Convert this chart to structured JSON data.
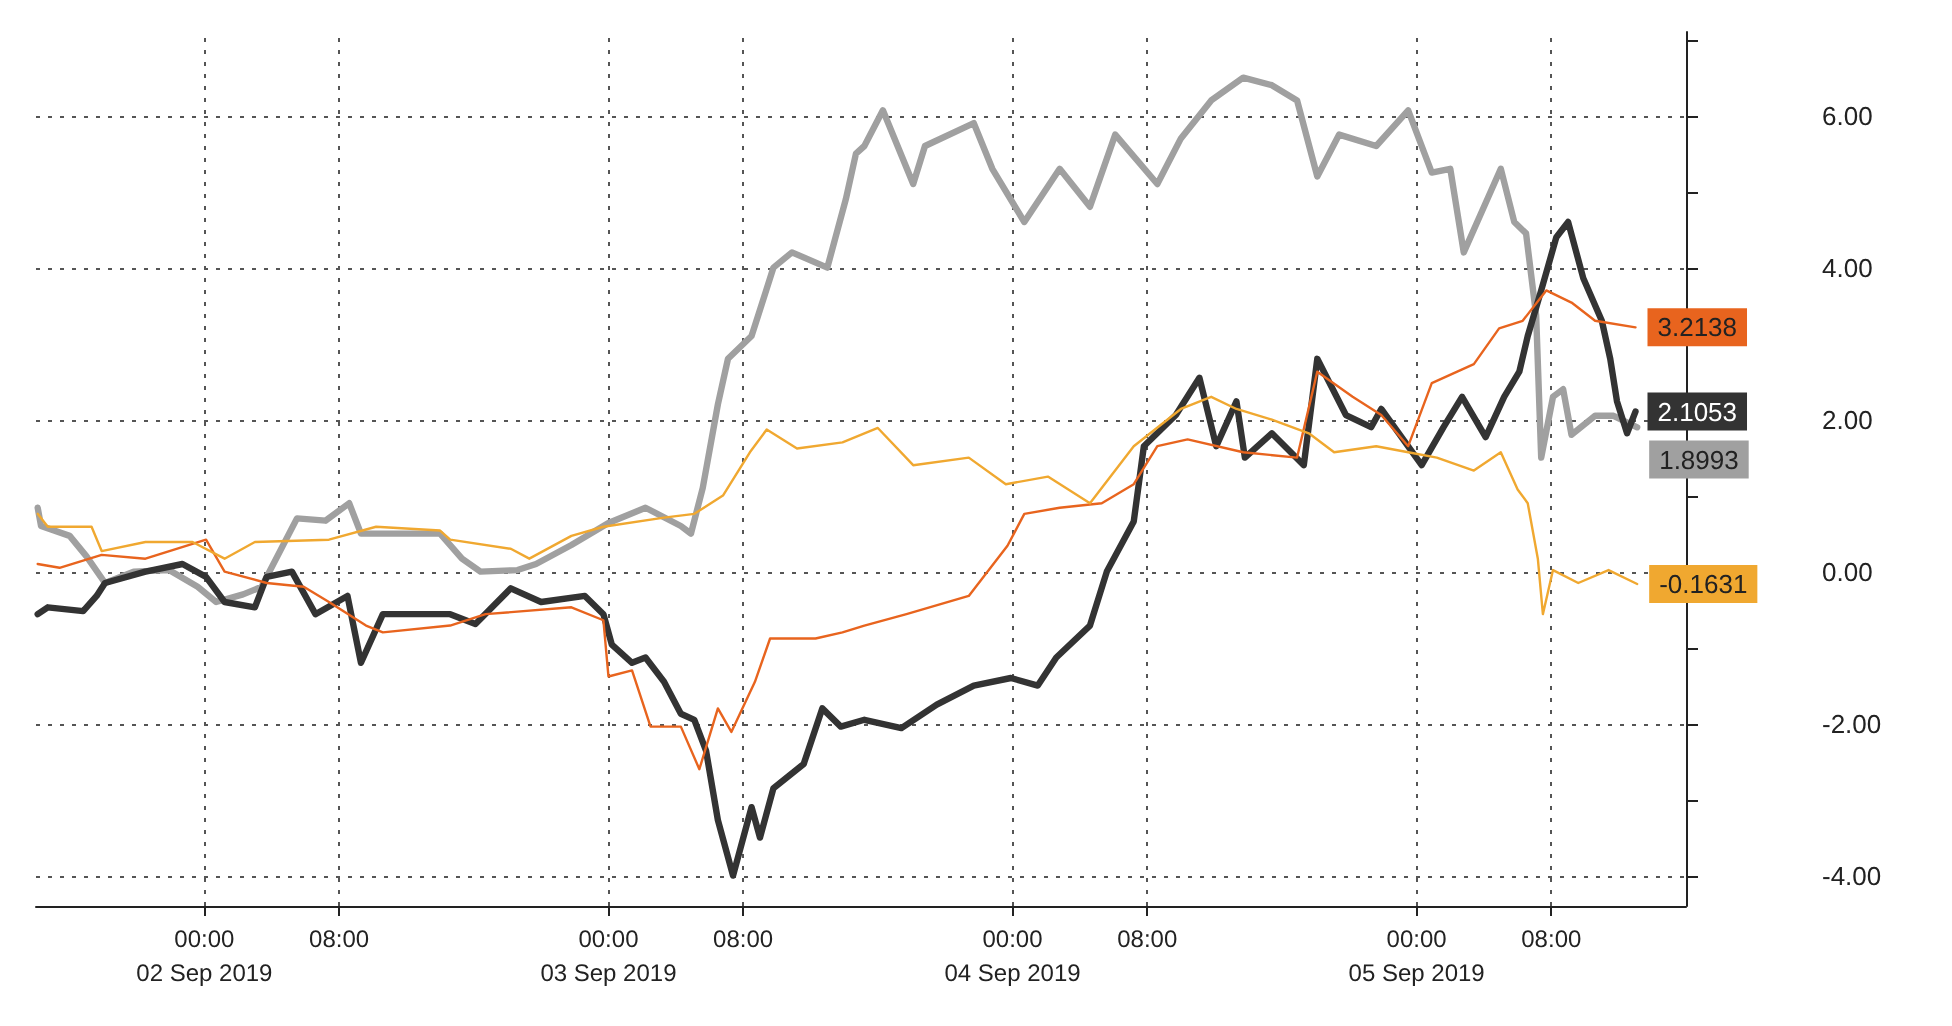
{
  "chart_data": {
    "type": "line",
    "xlim": [
      "2019-09-01T14:00",
      "2019-09-05T16:00"
    ],
    "ylim": [
      -4.4,
      7.1
    ],
    "xticks": [
      {
        "value": "2019-09-02T00:00",
        "label": "00:00\n02 Sep 2019"
      },
      {
        "value": "2019-09-02T08:00",
        "label": "08:00"
      },
      {
        "value": "2019-09-03T00:00",
        "label": "00:00\n03 Sep 2019"
      },
      {
        "value": "2019-09-03T08:00",
        "label": "08:00"
      },
      {
        "value": "2019-09-04T00:00",
        "label": "00:00\n04 Sep 2019"
      },
      {
        "value": "2019-09-04T08:00",
        "label": "08:00"
      },
      {
        "value": "2019-09-05T00:00",
        "label": "00:00\n05 Sep 2019"
      },
      {
        "value": "2019-09-05T08:00",
        "label": "08:00"
      }
    ],
    "yticks": [
      {
        "value": -4,
        "label": "-4.00"
      },
      {
        "value": -3,
        "label": null
      },
      {
        "value": -2,
        "label": "-2.00"
      },
      {
        "value": -1,
        "label": null
      },
      {
        "value": 0,
        "label": "0.00"
      },
      {
        "value": 1,
        "label": null
      },
      {
        "value": 2,
        "label": "2.00"
      },
      {
        "value": 3,
        "label": null
      },
      {
        "value": 4,
        "label": "4.00"
      },
      {
        "value": 5,
        "label": null
      },
      {
        "value": 6,
        "label": "6.00"
      },
      {
        "value": 7,
        "label": null
      }
    ],
    "grid": true,
    "marker": "none",
    "line_style": "solid",
    "series": [
      {
        "color": "#a0a0a0",
        "x": [
          "2019-09-01T14:06",
          "2019-09-01T14:18",
          "2019-09-01T16:00",
          "2019-09-01T17:00",
          "2019-09-01T18:06",
          "2019-09-01T19:48",
          "2019-09-01T21:54",
          "2019-09-01T23:36",
          "2019-09-02T00:42",
          "2019-09-02T02:18",
          "2019-09-02T03:24",
          "2019-09-02T05:30",
          "2019-09-02T07:12",
          "2019-09-02T08:36",
          "2019-09-02T09:18",
          "2019-09-02T14:00",
          "2019-09-02T15:18",
          "2019-09-02T16:24",
          "2019-09-02T18:36",
          "2019-09-02T19:42",
          "2019-09-02T21:48",
          "2019-09-03T00:00",
          "2019-09-03T02:12",
          "2019-09-03T04:18",
          "2019-09-03T04:54",
          "2019-09-03T05:36",
          "2019-09-03T06:30",
          "2019-09-03T07:06",
          "2019-09-03T08:30",
          "2019-09-03T09:48",
          "2019-09-03T10:54",
          "2019-09-03T13:00",
          "2019-09-03T14:06",
          "2019-09-03T14:42",
          "2019-09-03T15:12",
          "2019-09-03T16:18",
          "2019-09-03T18:06",
          "2019-09-03T18:48",
          "2019-09-03T21:42",
          "2019-09-03T22:48",
          "2019-09-04T00:42",
          "2019-09-04T02:48",
          "2019-09-04T04:36",
          "2019-09-04T06:06",
          "2019-09-04T08:36",
          "2019-09-04T10:00",
          "2019-09-04T11:48",
          "2019-09-04T13:42",
          "2019-09-04T15:24",
          "2019-09-04T16:54",
          "2019-09-04T18:06",
          "2019-09-04T19:24",
          "2019-09-04T21:36",
          "2019-09-04T23:30",
          "2019-09-05T00:54",
          "2019-09-05T02:00",
          "2019-09-05T02:48",
          "2019-09-05T04:06",
          "2019-09-05T05:00",
          "2019-09-05T05:48",
          "2019-09-05T06:30",
          "2019-09-05T07:06",
          "2019-09-05T07:24",
          "2019-09-05T08:06",
          "2019-09-05T08:42",
          "2019-09-05T09:12",
          "2019-09-05T10:36",
          "2019-09-05T11:42",
          "2019-09-05T13:06"
        ],
        "values": [
          0.84,
          0.6,
          0.47,
          0.2,
          -0.15,
          0,
          0.02,
          -0.2,
          -0.4,
          -0.3,
          -0.2,
          0.7,
          0.67,
          0.9,
          0.5,
          0.5,
          0.17,
          0,
          0.02,
          0.1,
          0.35,
          0.64,
          0.84,
          0.6,
          0.5,
          1.1,
          2.2,
          2.8,
          3.1,
          4.0,
          4.2,
          4.0,
          4.9,
          5.5,
          5.6,
          6.07,
          5.1,
          5.6,
          5.9,
          5.3,
          4.6,
          5.3,
          4.8,
          5.75,
          5.1,
          5.7,
          6.2,
          6.5,
          6.4,
          6.2,
          5.2,
          5.75,
          5.6,
          6.07,
          5.25,
          5.3,
          4.2,
          4.85,
          5.3,
          4.6,
          4.45,
          3.37,
          1.5,
          2.3,
          2.4,
          1.8,
          2.05,
          2.05,
          1.8993
        ],
        "value_labels": [
          null,
          null,
          null,
          null,
          null,
          null,
          null,
          null,
          null,
          null,
          null,
          null,
          null,
          null,
          null,
          null,
          null,
          null,
          null,
          null,
          null,
          null,
          null,
          null,
          null,
          null,
          null,
          null,
          null,
          null,
          null,
          null,
          null,
          null,
          null,
          null,
          null,
          null,
          null,
          null,
          null,
          null,
          null,
          null,
          null,
          null,
          null,
          null,
          null,
          null,
          null,
          null,
          null,
          null,
          null,
          null,
          null,
          null,
          null,
          null,
          null,
          null,
          null,
          null,
          null,
          null,
          null,
          null,
          "1.8993"
        ]
      },
      {
        "color": "#333333",
        "x": [
          "2019-09-01T14:06",
          "2019-09-01T14:42",
          "2019-09-01T16:48",
          "2019-09-01T17:36",
          "2019-09-01T18:06",
          "2019-09-01T20:30",
          "2019-09-01T22:42",
          "2019-09-02T00:06",
          "2019-09-02T01:12",
          "2019-09-02T03:00",
          "2019-09-02T03:42",
          "2019-09-02T05:12",
          "2019-09-02T06:36",
          "2019-09-02T08:30",
          "2019-09-02T09:18",
          "2019-09-02T10:36",
          "2019-09-02T14:36",
          "2019-09-02T16:06",
          "2019-09-02T18:12",
          "2019-09-02T20:00",
          "2019-09-02T22:36",
          "2019-09-02T23:42",
          "2019-09-03T00:12",
          "2019-09-03T01:24",
          "2019-09-03T02:12",
          "2019-09-03T03:18",
          "2019-09-03T04:18",
          "2019-09-03T05:06",
          "2019-09-03T05:48",
          "2019-09-03T06:30",
          "2019-09-03T07:24",
          "2019-09-03T08:30",
          "2019-09-03T09:00",
          "2019-09-03T09:48",
          "2019-09-03T11:36",
          "2019-09-03T12:42",
          "2019-09-03T13:48",
          "2019-09-03T15:12",
          "2019-09-03T17:24",
          "2019-09-03T19:30",
          "2019-09-03T21:42",
          "2019-09-03T23:54",
          "2019-09-04T01:30",
          "2019-09-04T02:36",
          "2019-09-04T04:36",
          "2019-09-04T05:36",
          "2019-09-04T07:12",
          "2019-09-04T07:48",
          "2019-09-04T09:42",
          "2019-09-04T11:06",
          "2019-09-04T12:06",
          "2019-09-04T13:18",
          "2019-09-04T13:48",
          "2019-09-04T15:24",
          "2019-09-04T17:18",
          "2019-09-04T18:06",
          "2019-09-04T19:48",
          "2019-09-04T21:18",
          "2019-09-04T21:54",
          "2019-09-05T00:18",
          "2019-09-05T01:36",
          "2019-09-05T02:42",
          "2019-09-05T04:06",
          "2019-09-05T05:12",
          "2019-09-05T06:06",
          "2019-09-05T06:36",
          "2019-09-05T07:24",
          "2019-09-05T08:18",
          "2019-09-05T09:00",
          "2019-09-05T09:54",
          "2019-09-05T11:00",
          "2019-09-05T11:30",
          "2019-09-05T11:54",
          "2019-09-05T12:30",
          "2019-09-05T13:00"
        ],
        "values": [
          -0.56,
          -0.47,
          -0.52,
          -0.32,
          -0.15,
          0,
          0.1,
          -0.07,
          -0.4,
          -0.47,
          -0.07,
          0,
          -0.56,
          -0.32,
          -1.2,
          -0.56,
          -0.56,
          -0.69,
          -0.22,
          -0.4,
          -0.32,
          -0.56,
          -0.96,
          -1.2,
          -1.13,
          -1.45,
          -1.87,
          -1.95,
          -2.36,
          -3.27,
          -4.0,
          -3.1,
          -3.5,
          -2.85,
          -2.53,
          -1.8,
          -2.04,
          -1.95,
          -2.06,
          -1.75,
          -1.5,
          -1.4,
          -1.5,
          -1.13,
          -0.71,
          0,
          0.66,
          1.65,
          2.06,
          2.55,
          1.65,
          2.24,
          1.5,
          1.82,
          1.4,
          2.8,
          2.06,
          1.9,
          2.14,
          1.4,
          1.9,
          2.3,
          1.77,
          2.3,
          2.63,
          3.1,
          3.7,
          4.4,
          4.6,
          3.86,
          3.3,
          2.8,
          2.24,
          1.82,
          2.1053
        ],
        "value_labels": [
          null,
          null,
          null,
          null,
          null,
          null,
          null,
          null,
          null,
          null,
          null,
          null,
          null,
          null,
          null,
          null,
          null,
          null,
          null,
          null,
          null,
          null,
          null,
          null,
          null,
          null,
          null,
          null,
          null,
          null,
          null,
          null,
          null,
          null,
          null,
          null,
          null,
          null,
          null,
          null,
          null,
          null,
          null,
          null,
          null,
          null,
          null,
          null,
          null,
          null,
          null,
          null,
          null,
          null,
          null,
          null,
          null,
          null,
          null,
          null,
          null,
          null,
          null,
          null,
          null,
          null,
          null,
          null,
          null,
          null,
          null,
          null,
          null,
          null,
          "2.1053"
        ]
      },
      {
        "color": "#e8641e",
        "x": [
          "2019-09-01T14:06",
          "2019-09-01T15:24",
          "2019-09-01T17:54",
          "2019-09-01T20:30",
          "2019-09-02T00:06",
          "2019-09-02T01:12",
          "2019-09-02T03:42",
          "2019-09-02T05:54",
          "2019-09-02T07:24",
          "2019-09-02T09:36",
          "2019-09-02T10:36",
          "2019-09-02T14:36",
          "2019-09-02T16:42",
          "2019-09-02T21:48",
          "2019-09-02T23:42",
          "2019-09-03T00:00",
          "2019-09-03T01:24",
          "2019-09-03T02:30",
          "2019-09-03T04:18",
          "2019-09-03T05:24",
          "2019-09-03T06:30",
          "2019-09-03T07:18",
          "2019-09-03T08:42",
          "2019-09-03T09:36",
          "2019-09-03T12:18",
          "2019-09-03T13:54",
          "2019-09-03T15:12",
          "2019-09-03T17:42",
          "2019-09-03T21:24",
          "2019-09-03T23:42",
          "2019-09-04T00:42",
          "2019-09-04T02:48",
          "2019-09-04T05:18",
          "2019-09-04T07:12",
          "2019-09-04T08:36",
          "2019-09-04T10:24",
          "2019-09-04T13:42",
          "2019-09-04T16:54",
          "2019-09-04T18:06",
          "2019-09-04T20:12",
          "2019-09-04T21:54",
          "2019-09-04T23:30",
          "2019-09-05T00:54",
          "2019-09-05T03:24",
          "2019-09-05T04:54",
          "2019-09-05T06:18",
          "2019-09-05T07:42",
          "2019-09-05T09:12",
          "2019-09-05T10:36",
          "2019-09-05T13:00"
        ],
        "values": [
          0.1,
          0.05,
          0.22,
          0.17,
          0.42,
          0,
          -0.15,
          -0.2,
          -0.4,
          -0.71,
          -0.8,
          -0.71,
          -0.56,
          -0.47,
          -0.64,
          -1.38,
          -1.3,
          -2.04,
          -2.04,
          -2.6,
          -1.8,
          -2.11,
          -1.45,
          -0.88,
          -0.88,
          -0.8,
          -0.71,
          -0.56,
          -0.32,
          0.34,
          0.76,
          0.84,
          0.9,
          1.15,
          1.65,
          1.74,
          1.57,
          1.5,
          2.63,
          2.3,
          2.06,
          1.65,
          2.48,
          2.73,
          3.2,
          3.3,
          3.7,
          3.54,
          3.3,
          3.2138
        ],
        "value_labels": [
          null,
          null,
          null,
          null,
          null,
          null,
          null,
          null,
          null,
          null,
          null,
          null,
          null,
          null,
          null,
          null,
          null,
          null,
          null,
          null,
          null,
          null,
          null,
          null,
          null,
          null,
          null,
          null,
          null,
          null,
          null,
          null,
          null,
          null,
          null,
          null,
          null,
          null,
          null,
          null,
          null,
          null,
          null,
          null,
          null,
          null,
          null,
          null,
          null,
          "3.2138"
        ]
      },
      {
        "color": "#f0a830",
        "x": [
          "2019-09-01T14:06",
          "2019-09-01T14:42",
          "2019-09-01T17:18",
          "2019-09-01T17:54",
          "2019-09-01T20:30",
          "2019-09-01T23:18",
          "2019-09-02T01:12",
          "2019-09-02T03:00",
          "2019-09-02T07:24",
          "2019-09-02T10:12",
          "2019-09-02T14:00",
          "2019-09-02T14:36",
          "2019-09-02T18:12",
          "2019-09-02T19:18",
          "2019-09-02T21:48",
          "2019-09-02T23:42",
          "2019-09-03T03:18",
          "2019-09-03T05:06",
          "2019-09-03T06:48",
          "2019-09-03T08:24",
          "2019-09-03T09:24",
          "2019-09-03T11:12",
          "2019-09-03T13:54",
          "2019-09-03T16:00",
          "2019-09-03T18:06",
          "2019-09-03T21:24",
          "2019-09-03T23:36",
          "2019-09-04T02:06",
          "2019-09-04T04:36",
          "2019-09-04T07:12",
          "2019-09-04T10:00",
          "2019-09-04T11:48",
          "2019-09-04T13:18",
          "2019-09-04T15:24",
          "2019-09-04T17:36",
          "2019-09-04T19:06",
          "2019-09-04T21:36",
          "2019-09-04T23:30",
          "2019-09-05T01:12",
          "2019-09-05T03:24",
          "2019-09-05T05:00",
          "2019-09-05T06:00",
          "2019-09-05T06:36",
          "2019-09-05T07:12",
          "2019-09-05T07:30",
          "2019-09-05T08:06",
          "2019-09-05T09:36",
          "2019-09-05T11:24",
          "2019-09-05T13:06"
        ],
        "values": [
          0.76,
          0.59,
          0.59,
          0.27,
          0.39,
          0.39,
          0.17,
          0.39,
          0.42,
          0.59,
          0.54,
          0.42,
          0.3,
          0.17,
          0.47,
          0.59,
          0.71,
          0.76,
          1.0,
          1.57,
          1.87,
          1.62,
          1.7,
          1.89,
          1.4,
          1.5,
          1.15,
          1.25,
          0.9,
          1.65,
          2.14,
          2.3,
          2.14,
          2.0,
          1.82,
          1.57,
          1.65,
          1.57,
          1.5,
          1.33,
          1.57,
          1.08,
          0.9,
          0.17,
          -0.56,
          0.02,
          -0.15,
          0.02,
          -0.1631
        ],
        "value_labels": [
          null,
          null,
          null,
          null,
          null,
          null,
          null,
          null,
          null,
          null,
          null,
          null,
          null,
          null,
          null,
          null,
          null,
          null,
          null,
          null,
          null,
          null,
          null,
          null,
          null,
          null,
          null,
          null,
          null,
          null,
          null,
          null,
          null,
          null,
          null,
          null,
          null,
          null,
          null,
          null,
          null,
          null,
          null,
          null,
          null,
          null,
          null,
          null,
          "-0.1631"
        ]
      }
    ]
  }
}
